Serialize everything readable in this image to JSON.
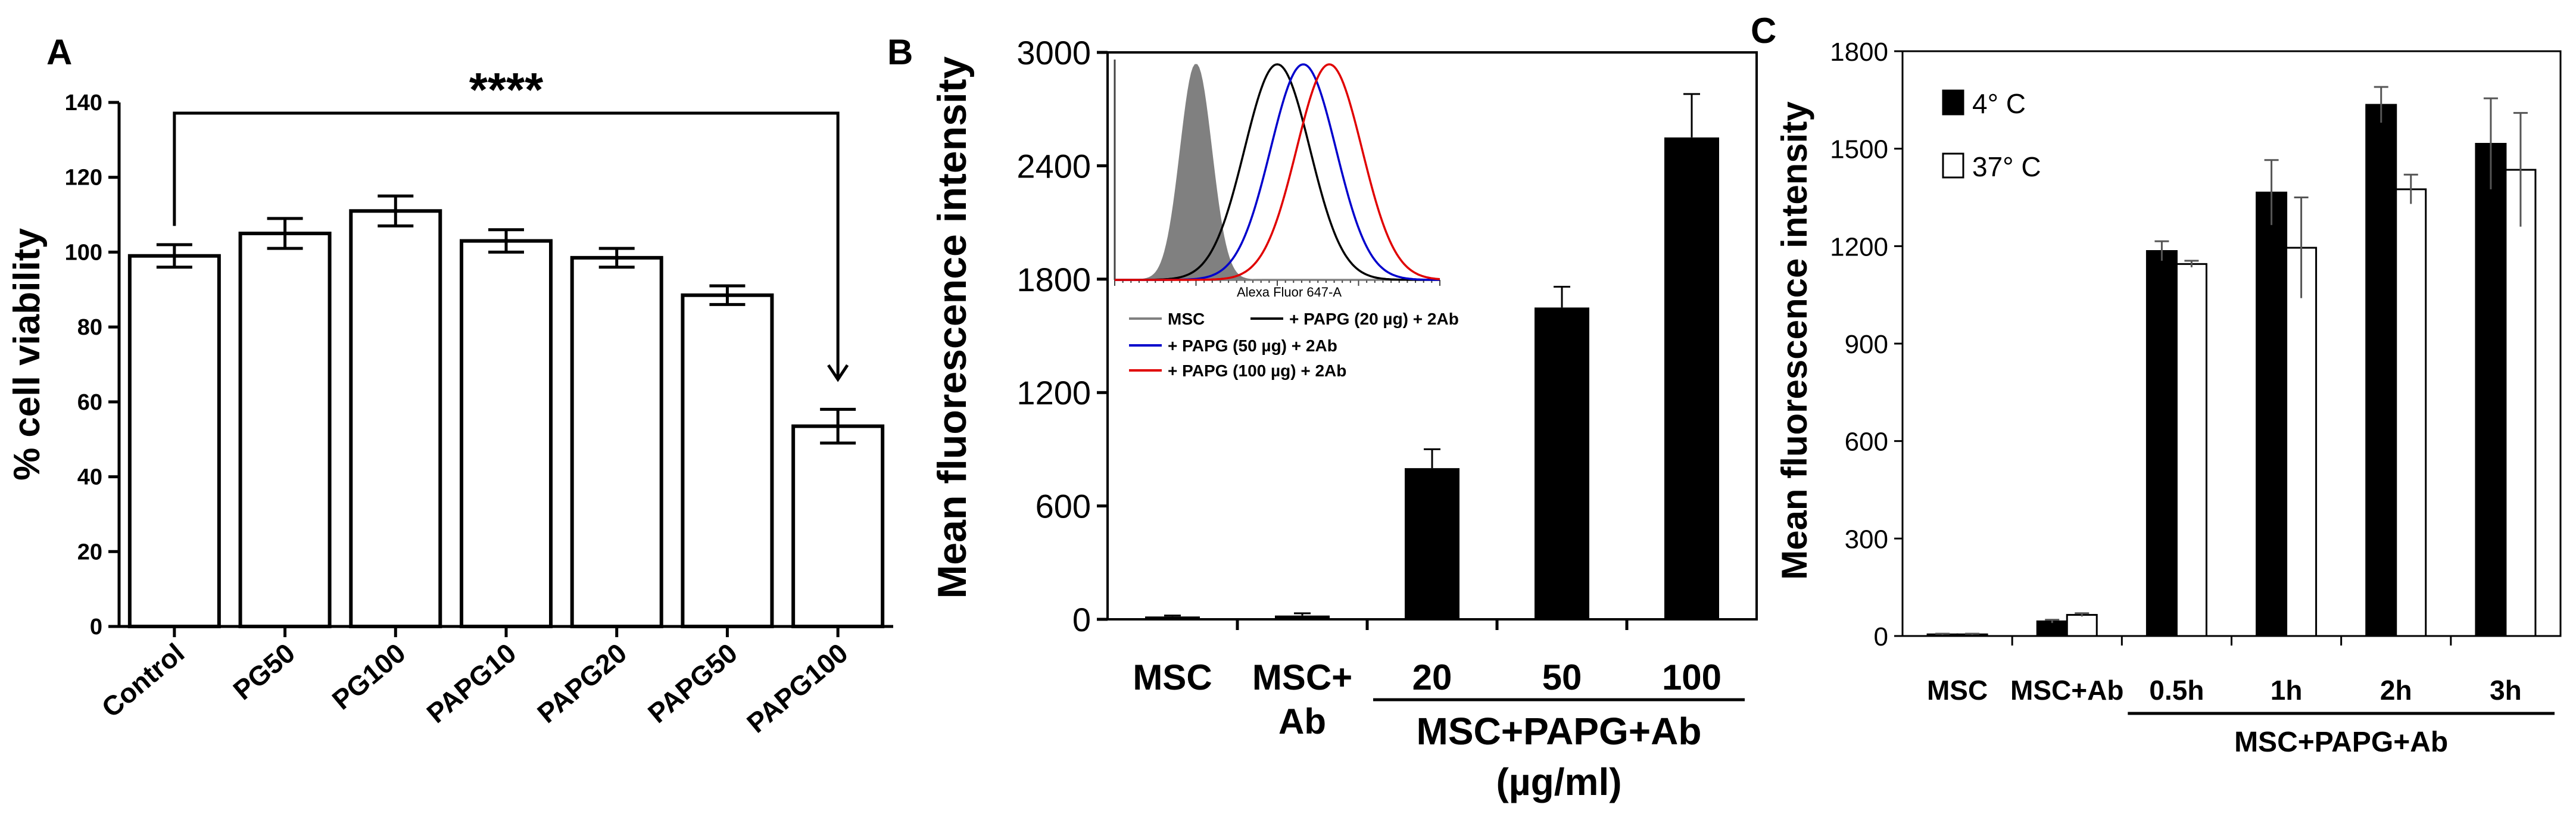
{
  "panels": {
    "a": {
      "letter": "A"
    },
    "b": {
      "letter": "B"
    },
    "c": {
      "letter": "C"
    }
  },
  "chart_data": [
    {
      "type": "bar",
      "panel": "A",
      "title": "",
      "xlabel": "",
      "ylabel": "% cell viability",
      "ylim": [
        0,
        140
      ],
      "yticks": [
        0,
        20,
        40,
        60,
        80,
        100,
        120,
        140
      ],
      "categories": [
        "Control",
        "PG50",
        "PG100",
        "PAPG10",
        "PAPG20",
        "PAPG50",
        "PAPG100"
      ],
      "values": [
        99,
        105,
        111,
        103,
        98.5,
        88.5,
        53.5
      ],
      "errors": [
        3,
        4,
        4,
        3,
        2.5,
        2.5,
        4.5
      ],
      "bar_color": "#ffffff",
      "significance": {
        "label": "****",
        "from": "Control",
        "to": "PAPG100"
      }
    },
    {
      "type": "bar",
      "panel": "B",
      "title": "",
      "xlabel": "",
      "ylabel": "Mean fluorescence intensity",
      "ylim": [
        0,
        3000
      ],
      "yticks": [
        0,
        600,
        1200,
        1800,
        2400,
        3000
      ],
      "categories": [
        "MSC",
        "MSC+ Ab",
        "20",
        "50",
        "100"
      ],
      "category_lines": [
        [
          "MSC"
        ],
        [
          "MSC+",
          "Ab"
        ],
        [
          "20"
        ],
        [
          "50"
        ],
        [
          "100"
        ]
      ],
      "values": [
        15,
        20,
        800,
        1650,
        2550
      ],
      "errors": [
        5,
        12,
        100,
        110,
        230
      ],
      "bar_color": "#000000",
      "group_label": [
        "MSC+PAPG+Ab",
        "(µg/ml)"
      ],
      "inset": {
        "type": "histogram-overlay",
        "xlabel": "Alexa Fluor 647-A",
        "series": [
          {
            "name": "MSC",
            "color": "#808080",
            "filled": true,
            "peak_position": 0.25
          },
          {
            "name": "+ PAPG (20 µg) + 2Ab",
            "color": "#000000",
            "filled": false,
            "peak_position": 0.5
          },
          {
            "name": "+ PAPG (50 µg) + 2Ab",
            "color": "#0000cc",
            "filled": false,
            "peak_position": 0.58
          },
          {
            "name": "+ PAPG (100 µg) + 2Ab",
            "color": "#e00000",
            "filled": false,
            "peak_position": 0.66
          }
        ]
      }
    },
    {
      "type": "bar",
      "panel": "C",
      "title": "",
      "xlabel": "",
      "ylabel": "Mean fluorescence intensity",
      "ylim": [
        0,
        1800
      ],
      "yticks": [
        0,
        300,
        600,
        900,
        1200,
        1500,
        1800
      ],
      "categories": [
        "MSC",
        "MSC+Ab",
        "0.5h",
        "1h",
        "2h",
        "3h"
      ],
      "series": [
        {
          "name": "4° C",
          "color": "#000000",
          "values": [
            5,
            45,
            1185,
            1365,
            1635,
            1515
          ],
          "errors": [
            2,
            5,
            30,
            100,
            55,
            140
          ]
        },
        {
          "name": "37° C",
          "color": "#ffffff",
          "values": [
            5,
            65,
            1145,
            1195,
            1375,
            1435
          ],
          "errors": [
            2,
            5,
            10,
            155,
            45,
            175
          ]
        }
      ],
      "legend": "top-left",
      "group_label": "MSC+PAPG+Ab"
    }
  ]
}
